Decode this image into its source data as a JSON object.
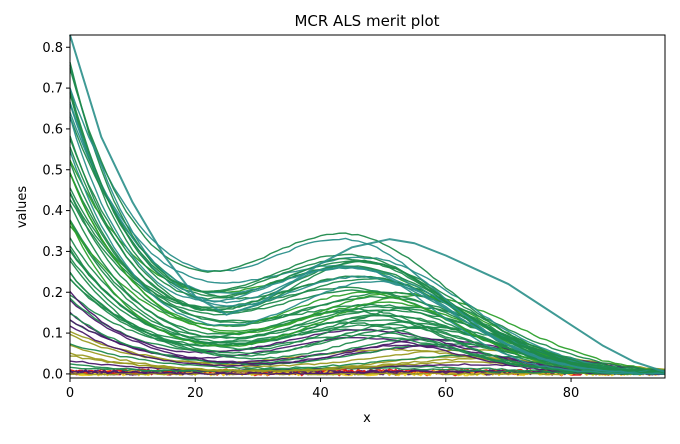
{
  "chart_data": {
    "type": "line",
    "title": "MCR ALS merit plot",
    "xlabel": "x",
    "ylabel": "values",
    "xlim": [
      0,
      95
    ],
    "ylim": [
      -0.01,
      0.83
    ],
    "xticks": [
      0,
      20,
      40,
      60,
      80
    ],
    "yticks": [
      0.0,
      0.1,
      0.2,
      0.3,
      0.4,
      0.5,
      0.6,
      0.7,
      0.8
    ],
    "xtick_labels": [
      "0",
      "20",
      "40",
      "60",
      "80"
    ],
    "ytick_labels": [
      "0.0",
      "0.1",
      "0.2",
      "0.3",
      "0.4",
      "0.5",
      "0.6",
      "0.7",
      "0.8"
    ],
    "grid": false,
    "legend": "none",
    "series_family": {
      "description_count": 60,
      "x_start": 0,
      "x_end": 95,
      "x_step": 1,
      "component_1_peak_x": 0,
      "component_1_max": 0.83,
      "component_2_peak_x": 51,
      "component_2_max": 0.33,
      "upper_envelope_samples": [
        {
          "x": 0,
          "y": 0.83
        },
        {
          "x": 5,
          "y": 0.58
        },
        {
          "x": 10,
          "y": 0.42
        },
        {
          "x": 15,
          "y": 0.29
        },
        {
          "x": 20,
          "y": 0.19
        },
        {
          "x": 25,
          "y": 0.145
        },
        {
          "x": 30,
          "y": 0.17
        },
        {
          "x": 35,
          "y": 0.22
        },
        {
          "x": 40,
          "y": 0.27
        },
        {
          "x": 45,
          "y": 0.31
        },
        {
          "x": 51,
          "y": 0.33
        },
        {
          "x": 55,
          "y": 0.32
        },
        {
          "x": 60,
          "y": 0.29
        },
        {
          "x": 65,
          "y": 0.255
        },
        {
          "x": 70,
          "y": 0.22
        },
        {
          "x": 75,
          "y": 0.17
        },
        {
          "x": 80,
          "y": 0.12
        },
        {
          "x": 85,
          "y": 0.07
        },
        {
          "x": 90,
          "y": 0.03
        },
        {
          "x": 95,
          "y": 0.005
        }
      ]
    },
    "colors": {
      "dominant": "#1f8a4c",
      "teal": "#2a8f8a",
      "green": "#2ca02c",
      "olive": "#9a9a20",
      "yellow": "#f2d024",
      "red": "#e8130b",
      "purple": "#4b1a6b"
    }
  }
}
